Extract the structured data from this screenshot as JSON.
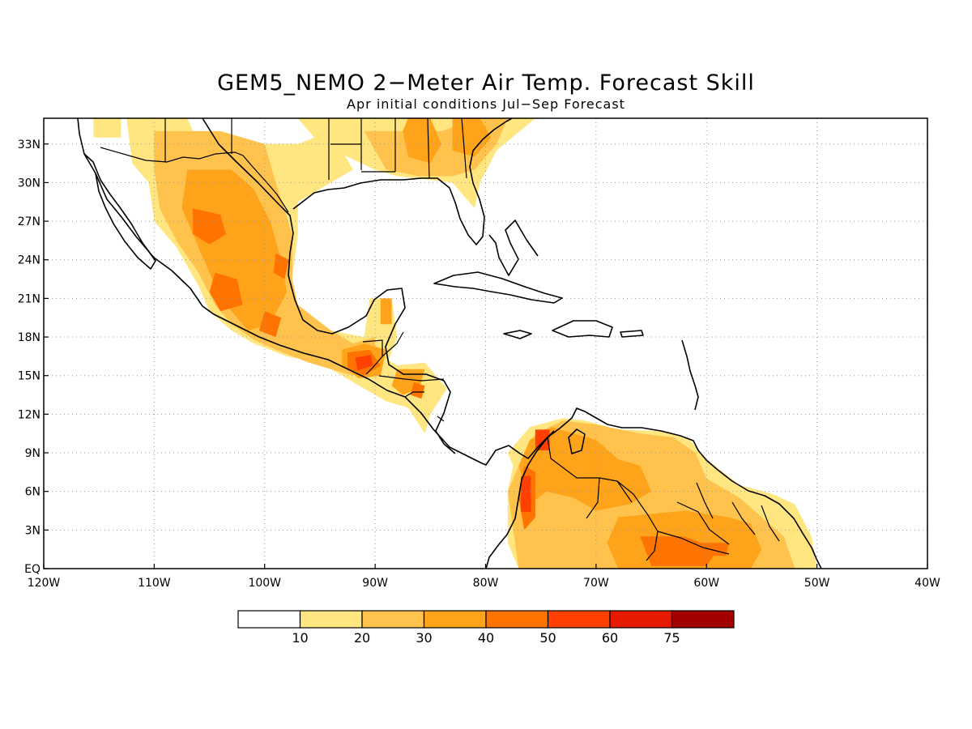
{
  "title": "GEM5_NEMO 2−Meter Air Temp. Forecast Skill",
  "subtitle": "Apr initial conditions  Jul−Sep Forecast",
  "map": {
    "lon_range": [
      -120,
      -40
    ],
    "lat_range": [
      0,
      35
    ],
    "lon_ticks": [
      {
        "value": -120,
        "label": "120W"
      },
      {
        "value": -110,
        "label": "110W"
      },
      {
        "value": -100,
        "label": "100W"
      },
      {
        "value": -90,
        "label": "90W"
      },
      {
        "value": -80,
        "label": "80W"
      },
      {
        "value": -70,
        "label": "70W"
      },
      {
        "value": -60,
        "label": "60W"
      },
      {
        "value": -50,
        "label": "50W"
      },
      {
        "value": -40,
        "label": "40W"
      }
    ],
    "lat_ticks": [
      {
        "value": 0,
        "label": "EQ"
      },
      {
        "value": 3,
        "label": "3N"
      },
      {
        "value": 6,
        "label": "6N"
      },
      {
        "value": 9,
        "label": "9N"
      },
      {
        "value": 12,
        "label": "12N"
      },
      {
        "value": 15,
        "label": "15N"
      },
      {
        "value": 18,
        "label": "18N"
      },
      {
        "value": 21,
        "label": "21N"
      },
      {
        "value": 24,
        "label": "24N"
      },
      {
        "value": 27,
        "label": "27N"
      },
      {
        "value": 30,
        "label": "30N"
      },
      {
        "value": 33,
        "label": "33N"
      }
    ],
    "grid": true
  },
  "colorbar": {
    "colors": [
      "#ffffff",
      "#ffe680",
      "#ffc34d",
      "#ffa31a",
      "#ff7300",
      "#ff4000",
      "#e61a00",
      "#a30000"
    ],
    "labels": [
      "10",
      "20",
      "30",
      "40",
      "50",
      "60",
      "75"
    ]
  },
  "shading": [
    {
      "level": 1,
      "coords": [
        [
          -112.5,
          35
        ],
        [
          -107,
          35
        ],
        [
          -106,
          33
        ],
        [
          -103,
          32
        ],
        [
          -101,
          33
        ],
        [
          -97,
          33
        ],
        [
          -94,
          34
        ],
        [
          -92,
          31
        ],
        [
          -97,
          28.5
        ],
        [
          -97,
          26
        ],
        [
          -97.5,
          22.5
        ],
        [
          -97.2,
          20.5
        ],
        [
          -96,
          19
        ],
        [
          -94,
          18.5
        ],
        [
          -91,
          18
        ],
        [
          -90.5,
          21
        ],
        [
          -88.5,
          21
        ],
        [
          -88,
          18
        ],
        [
          -88.8,
          16.2
        ],
        [
          -88,
          15.8
        ],
        [
          -85.5,
          16
        ],
        [
          -83.5,
          14
        ],
        [
          -85,
          12
        ],
        [
          -85.5,
          10.5
        ],
        [
          -87,
          12.5
        ],
        [
          -89,
          13
        ],
        [
          -92,
          14.5
        ],
        [
          -95,
          16
        ],
        [
          -98,
          16.5
        ],
        [
          -101,
          17.5
        ],
        [
          -103,
          18.5
        ],
        [
          -105,
          20
        ],
        [
          -106,
          22
        ],
        [
          -108,
          25
        ],
        [
          -110,
          27
        ],
        [
          -110.5,
          30
        ],
        [
          -112,
          31.5
        ]
      ]
    },
    {
      "level": 1,
      "coords": [
        [
          -97,
          35
        ],
        [
          -95,
          33
        ],
        [
          -90,
          31
        ],
        [
          -88,
          30.5
        ],
        [
          -83,
          30
        ],
        [
          -81,
          28
        ],
        [
          -80.5,
          30
        ],
        [
          -79,
          32.5
        ],
        [
          -75.5,
          35
        ]
      ]
    },
    {
      "level": 1,
      "coords": [
        [
          -115.5,
          35
        ],
        [
          -113,
          35
        ],
        [
          -113,
          33.5
        ],
        [
          -115.5,
          33.5
        ]
      ]
    },
    {
      "level": 1,
      "coords": [
        [
          -78,
          9
        ],
        [
          -76,
          11
        ],
        [
          -73,
          11.7
        ],
        [
          -71,
          11.5
        ],
        [
          -68,
          10.8
        ],
        [
          -64,
          10.7
        ],
        [
          -61.5,
          10
        ],
        [
          -60,
          8.5
        ],
        [
          -57,
          6.5
        ],
        [
          -54,
          5.8
        ],
        [
          -52,
          5
        ],
        [
          -50.5,
          2.5
        ],
        [
          -50,
          0
        ],
        [
          -77,
          0
        ],
        [
          -78,
          2
        ],
        [
          -78,
          6
        ],
        [
          -77.5,
          8
        ]
      ]
    },
    {
      "level": 2,
      "coords": [
        [
          -110,
          34
        ],
        [
          -104,
          34
        ],
        [
          -100,
          33
        ],
        [
          -99,
          30
        ],
        [
          -97.5,
          26
        ],
        [
          -97.5,
          22.5
        ],
        [
          -97,
          20.5
        ],
        [
          -94,
          18.5
        ],
        [
          -92,
          17.5
        ],
        [
          -90,
          18
        ],
        [
          -90,
          16
        ],
        [
          -92,
          15
        ],
        [
          -96,
          16
        ],
        [
          -99,
          17
        ],
        [
          -101,
          17.8
        ],
        [
          -103,
          19
        ],
        [
          -104.5,
          20.5
        ],
        [
          -106,
          23
        ],
        [
          -108,
          25.5
        ],
        [
          -109.5,
          28
        ],
        [
          -110,
          31
        ]
      ]
    },
    {
      "level": 2,
      "coords": [
        [
          -91,
          34
        ],
        [
          -88,
          34
        ],
        [
          -84,
          34
        ],
        [
          -80.5,
          35
        ],
        [
          -78,
          35
        ],
        [
          -79,
          33
        ],
        [
          -81,
          31
        ],
        [
          -83,
          30.5
        ],
        [
          -86,
          30.5
        ],
        [
          -89,
          31
        ]
      ]
    },
    {
      "level": 2,
      "coords": [
        [
          -77,
          8
        ],
        [
          -75.5,
          10.5
        ],
        [
          -73,
          11.5
        ],
        [
          -70,
          11.2
        ],
        [
          -66,
          10.5
        ],
        [
          -63,
          10.2
        ],
        [
          -61,
          9
        ],
        [
          -60,
          7
        ],
        [
          -57,
          5.5
        ],
        [
          -55,
          4
        ],
        [
          -53,
          2.5
        ],
        [
          -52,
          0
        ],
        [
          -77,
          0
        ],
        [
          -77.5,
          3
        ],
        [
          -78,
          6
        ]
      ]
    },
    {
      "level": 3,
      "coords": [
        [
          -107,
          31
        ],
        [
          -103,
          31
        ],
        [
          -101,
          29.5
        ],
        [
          -99.5,
          27
        ],
        [
          -98.5,
          24
        ],
        [
          -98,
          21.5
        ],
        [
          -99.5,
          19
        ],
        [
          -101.5,
          18.5
        ],
        [
          -103,
          20
        ],
        [
          -104.5,
          22
        ],
        [
          -106,
          25
        ],
        [
          -107.5,
          28
        ]
      ]
    },
    {
      "level": 3,
      "coords": [
        [
          -93,
          17
        ],
        [
          -91,
          17.5
        ],
        [
          -89,
          17
        ],
        [
          -89.5,
          15
        ],
        [
          -91.5,
          14.8
        ],
        [
          -93,
          15.8
        ]
      ]
    },
    {
      "level": 3,
      "coords": [
        [
          -88,
          15.5
        ],
        [
          -85.5,
          15.5
        ],
        [
          -86,
          14
        ],
        [
          -87.5,
          13.5
        ],
        [
          -88.5,
          14.2
        ]
      ]
    },
    {
      "level": 3,
      "coords": [
        [
          -89.5,
          21
        ],
        [
          -88.5,
          21
        ],
        [
          -88.5,
          19
        ],
        [
          -89.5,
          19
        ]
      ]
    },
    {
      "level": 3,
      "coords": [
        [
          -87,
          35
        ],
        [
          -85,
          35
        ],
        [
          -84,
          33
        ],
        [
          -85,
          31.5
        ],
        [
          -87,
          32
        ],
        [
          -87.5,
          34
        ]
      ]
    },
    {
      "level": 3,
      "coords": [
        [
          -83,
          35
        ],
        [
          -80.5,
          35
        ],
        [
          -79.5,
          33.5
        ],
        [
          -81,
          32
        ],
        [
          -83,
          32.5
        ]
      ]
    },
    {
      "level": 3,
      "coords": [
        [
          -77,
          8
        ],
        [
          -76,
          10
        ],
        [
          -74,
          11
        ],
        [
          -72,
          10.5
        ],
        [
          -70,
          10
        ],
        [
          -68,
          8.5
        ],
        [
          -66,
          8
        ],
        [
          -65,
          6
        ],
        [
          -67,
          5
        ],
        [
          -70,
          4.5
        ],
        [
          -72,
          5.5
        ],
        [
          -74.5,
          6
        ],
        [
          -76,
          5
        ],
        [
          -76.5,
          6.5
        ]
      ]
    },
    {
      "level": 3,
      "coords": [
        [
          -68,
          4
        ],
        [
          -62,
          4.5
        ],
        [
          -58,
          4
        ],
        [
          -56,
          3.5
        ],
        [
          -55,
          1.5
        ],
        [
          -56,
          0
        ],
        [
          -68,
          0
        ],
        [
          -69,
          2
        ]
      ]
    },
    {
      "level": 4,
      "coords": [
        [
          -106.5,
          28
        ],
        [
          -104,
          27.5
        ],
        [
          -103.5,
          26
        ],
        [
          -105,
          25.2
        ],
        [
          -106.5,
          26
        ]
      ]
    },
    {
      "level": 4,
      "coords": [
        [
          -104.5,
          23
        ],
        [
          -102.5,
          22.5
        ],
        [
          -102,
          20.5
        ],
        [
          -104,
          20
        ],
        [
          -105,
          21.5
        ]
      ]
    },
    {
      "level": 4,
      "coords": [
        [
          -100,
          20
        ],
        [
          -98.5,
          19.5
        ],
        [
          -99,
          18
        ],
        [
          -100.5,
          18.5
        ]
      ]
    },
    {
      "level": 4,
      "coords": [
        [
          -99,
          24.5
        ],
        [
          -97.8,
          24
        ],
        [
          -98.2,
          22.5
        ],
        [
          -99.2,
          23
        ]
      ]
    },
    {
      "level": 4,
      "coords": [
        [
          -92.5,
          16.8
        ],
        [
          -90.5,
          17
        ],
        [
          -89.5,
          15.8
        ],
        [
          -91,
          15
        ],
        [
          -92.5,
          15.6
        ]
      ]
    },
    {
      "level": 4,
      "coords": [
        [
          -86.5,
          14.5
        ],
        [
          -85.5,
          14.2
        ],
        [
          -85.8,
          13.2
        ],
        [
          -86.8,
          13.5
        ]
      ]
    },
    {
      "level": 4,
      "coords": [
        [
          -76.5,
          8
        ],
        [
          -75.5,
          7.5
        ],
        [
          -75.5,
          4
        ],
        [
          -76.5,
          3
        ],
        [
          -77,
          5.5
        ]
      ]
    },
    {
      "level": 4,
      "coords": [
        [
          -66,
          2.5
        ],
        [
          -62,
          2.5
        ],
        [
          -59,
          1.5
        ],
        [
          -60,
          0.2
        ],
        [
          -65,
          0.2
        ]
      ]
    },
    {
      "level": 4,
      "coords": [
        [
          -60.5,
          2
        ],
        [
          -58,
          2
        ],
        [
          -58.2,
          1
        ],
        [
          -60.5,
          1
        ]
      ]
    },
    {
      "level": 5,
      "coords": [
        [
          -75.5,
          10.8
        ],
        [
          -74.2,
          10.8
        ],
        [
          -74.2,
          9.2
        ],
        [
          -75.5,
          9.2
        ]
      ]
    },
    {
      "level": 5,
      "coords": [
        [
          -76.8,
          7.2
        ],
        [
          -75.9,
          7.2
        ],
        [
          -75.9,
          4.4
        ],
        [
          -76.8,
          4.4
        ]
      ]
    },
    {
      "level": 5,
      "coords": [
        [
          -91.8,
          16.4
        ],
        [
          -90.4,
          16.6
        ],
        [
          -90.2,
          15.8
        ],
        [
          -91.6,
          15.4
        ]
      ]
    }
  ]
}
